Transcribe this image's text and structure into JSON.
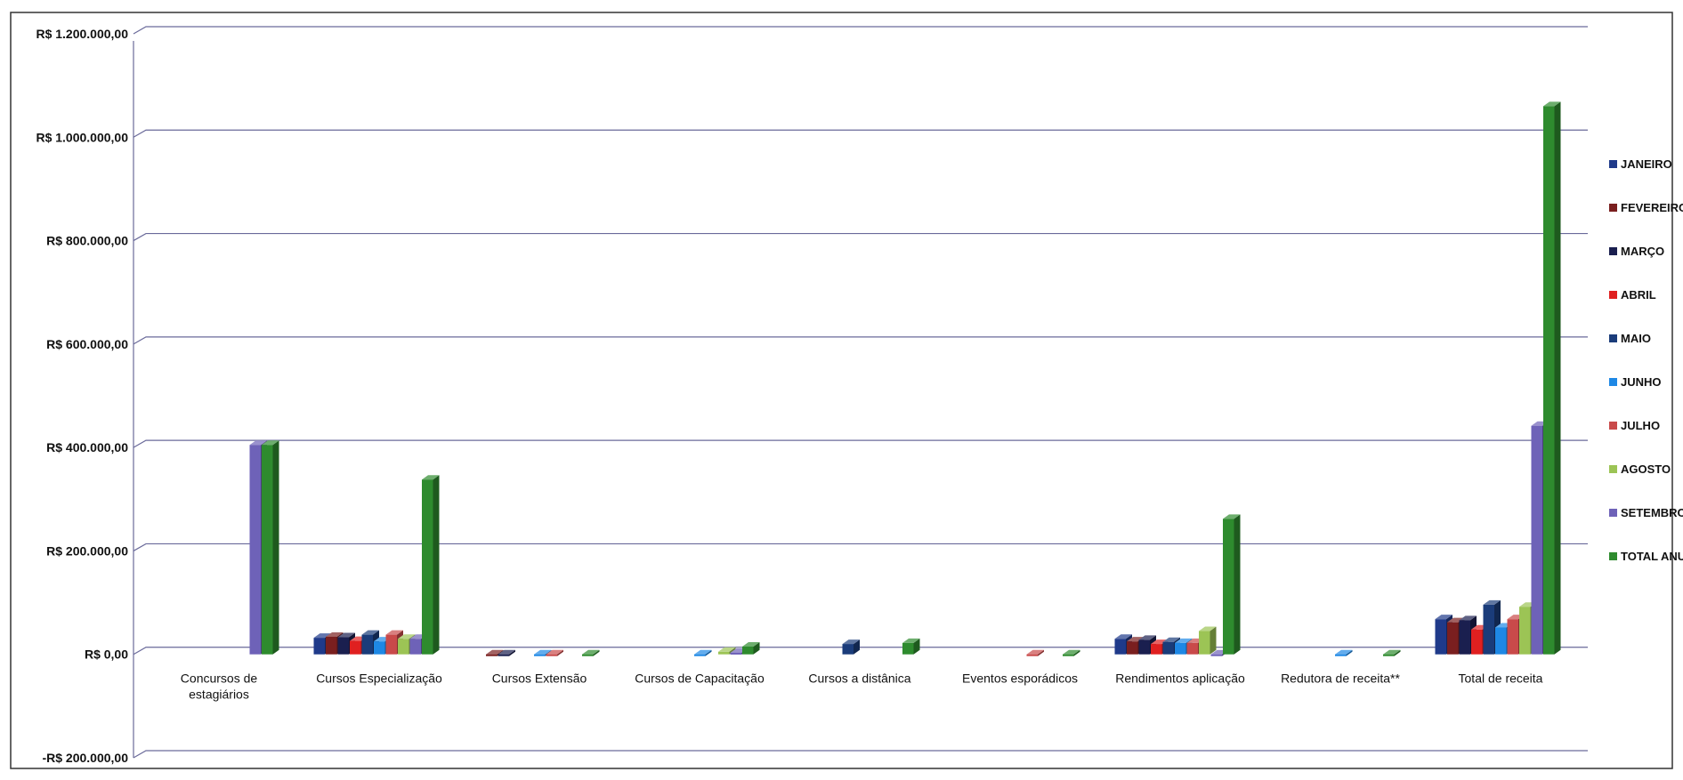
{
  "chart_data": {
    "type": "bar",
    "style": "3d-clustered-column",
    "title": "",
    "xlabel": "",
    "ylabel": "",
    "ylim": [
      -200000,
      1200000
    ],
    "ytick_step": 200000,
    "y_tick_labels": [
      "-R$ 200.000,00",
      "R$ 0,00",
      "R$ 200.000,00",
      "R$ 400.000,00",
      "R$ 600.000,00",
      "R$ 800.000,00",
      "R$ 1.000.000,00",
      "R$ 1.200.000,00"
    ],
    "grid": true,
    "legend_position": "right",
    "categories": [
      [
        "Concursos de",
        "estagiários"
      ],
      [
        "Cursos Especialização"
      ],
      [
        "Cursos Extensão"
      ],
      [
        "Cursos de Capacitação"
      ],
      [
        "Cursos a distânica"
      ],
      [
        "Eventos esporádicos"
      ],
      [
        "Rendimentos aplicação"
      ],
      [
        "Redutora de receita**"
      ],
      [
        "Total de receita"
      ]
    ],
    "series": [
      {
        "name": "JANEIRO",
        "color": "#1F3A8A",
        "values": [
          0,
          32000,
          0,
          0,
          0,
          0,
          30000,
          0,
          68000
        ]
      },
      {
        "name": "FEVEREIRO",
        "color": "#7A1F1F",
        "values": [
          0,
          34000,
          -1000,
          0,
          0,
          0,
          25000,
          0,
          62000
        ]
      },
      {
        "name": "MARÇO",
        "color": "#1A1F4F",
        "values": [
          0,
          33000,
          -1000,
          0,
          0,
          0,
          28000,
          0,
          66000
        ]
      },
      {
        "name": "ABRIL",
        "color": "#E02020",
        "values": [
          0,
          26000,
          0,
          0,
          0,
          0,
          20000,
          0,
          48000
        ]
      },
      {
        "name": "MAIO",
        "color": "#1A3C7A",
        "values": [
          0,
          38000,
          0,
          0,
          20000,
          0,
          24000,
          0,
          96000
        ]
      },
      {
        "name": "JUNHO",
        "color": "#1E88E5",
        "values": [
          0,
          25000,
          -1000,
          -1000,
          0,
          0,
          22000,
          -1000,
          52000
        ]
      },
      {
        "name": "JULHO",
        "color": "#C94A4A",
        "values": [
          0,
          38000,
          -1000,
          0,
          0,
          -1000,
          22000,
          0,
          68000
        ]
      },
      {
        "name": "AGOSTO",
        "color": "#9CC455",
        "values": [
          0,
          30000,
          0,
          5000,
          0,
          0,
          45000,
          0,
          92000
        ]
      },
      {
        "name": "SETEMBRO",
        "color": "#6E62B8",
        "values": [
          405000,
          30000,
          0,
          3000,
          0,
          0,
          -2000,
          0,
          442000
        ]
      },
      {
        "name": "TOTAL ANUAL",
        "color": "#2E8B2E",
        "values": [
          405000,
          338000,
          -2000,
          15000,
          22000,
          -2000,
          262000,
          -2000,
          1060000
        ]
      }
    ]
  }
}
